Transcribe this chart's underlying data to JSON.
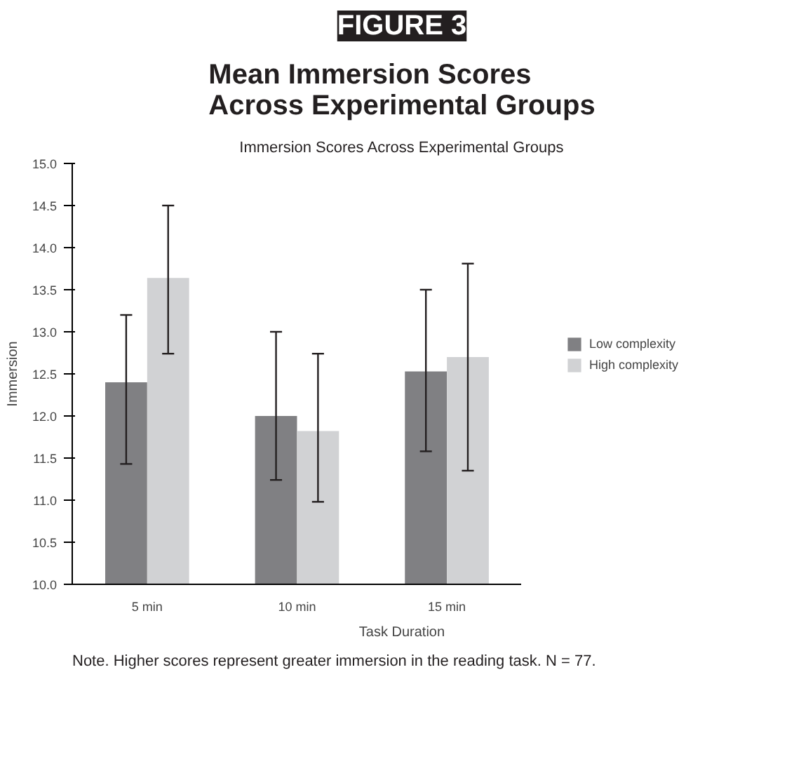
{
  "chart_data": {
    "type": "bar",
    "title": "Mean Immersion Scores Across Experimental Groups",
    "subtitle": "Immersion Scores Across Experimental Groups",
    "xlabel": "Task Duration",
    "ylabel": "Immersion",
    "categories": [
      "5 min",
      "10 min",
      "15 min"
    ],
    "series": [
      {
        "name": "Low complexity",
        "color": "#808083",
        "values": [
          12.4,
          12.0,
          12.53
        ],
        "errors": [
          [
            11.43,
            13.2
          ],
          [
            11.24,
            13.0
          ],
          [
            11.58,
            13.5
          ]
        ]
      },
      {
        "name": "High complexity",
        "color": "#d1d2d4",
        "values": [
          13.64,
          11.82,
          12.7
        ],
        "errors": [
          [
            12.74,
            14.5
          ],
          [
            10.98,
            12.74
          ],
          [
            11.35,
            13.81
          ]
        ]
      }
    ],
    "ylim": [
      10,
      15
    ],
    "yticks": [
      {
        "value": 10,
        "label": "10.0"
      },
      {
        "value": 10.5,
        "label": "10.5"
      },
      {
        "value": 11,
        "label": "11.0"
      },
      {
        "value": 11.5,
        "label": "11.5"
      },
      {
        "value": 12,
        "label": "12.0"
      },
      {
        "value": 12.5,
        "label": "12.5"
      },
      {
        "value": 13,
        "label": "13.0"
      },
      {
        "value": 13.5,
        "label": "13.5"
      },
      {
        "value": 14,
        "label": "14.0"
      },
      {
        "value": 14.5,
        "label": "14.5"
      },
      {
        "value": 15,
        "label": "15.0"
      }
    ],
    "grid": false,
    "legend": "right",
    "annotations": [
      "FIGURE 3",
      "Note. Higher scores represent greater immersion in the reading task. N = 77."
    ]
  }
}
